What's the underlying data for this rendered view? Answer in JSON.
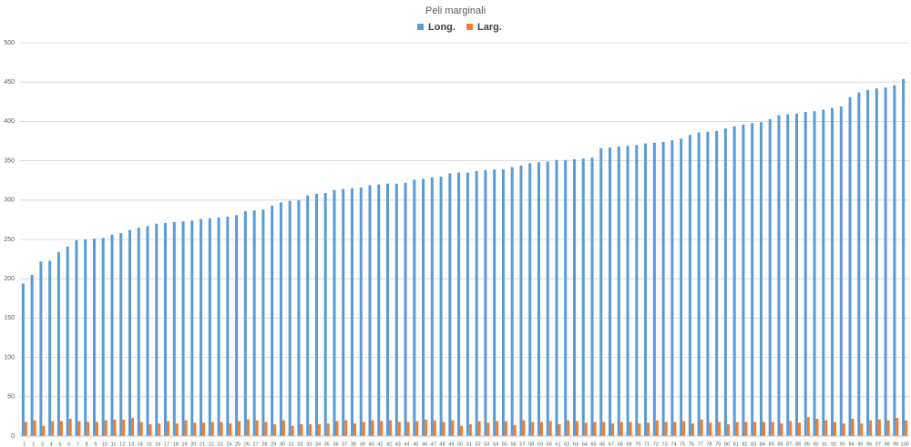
{
  "chart_data": {
    "type": "bar",
    "title": "Peli marginali",
    "categories": [
      "1",
      "2",
      "3",
      "4",
      "5",
      "6",
      "7",
      "8",
      "9",
      "10",
      "11",
      "12",
      "13",
      "14",
      "15",
      "16",
      "17",
      "18",
      "19",
      "20",
      "21",
      "22",
      "23",
      "24",
      "25",
      "26",
      "27",
      "28",
      "29",
      "30",
      "31",
      "32",
      "33",
      "34",
      "35",
      "36",
      "37",
      "38",
      "39",
      "40",
      "41",
      "42",
      "43",
      "44",
      "45",
      "46",
      "47",
      "48",
      "49",
      "50",
      "51",
      "52",
      "53",
      "54",
      "55",
      "56",
      "57",
      "58",
      "59",
      "60",
      "61",
      "62",
      "63",
      "64",
      "65",
      "66",
      "67",
      "68",
      "69",
      "70",
      "71",
      "72",
      "73",
      "74",
      "75",
      "76",
      "77",
      "78",
      "79",
      "80",
      "81",
      "82",
      "83",
      "84",
      "85",
      "86",
      "87",
      "88",
      "89",
      "90",
      "91",
      "92",
      "93",
      "94",
      "95",
      "96",
      "97",
      "98",
      "99",
      "100"
    ],
    "series": [
      {
        "name": "Long.",
        "color": "#5b9bd5",
        "values": [
          194,
          205,
          222,
          223,
          234,
          241,
          249,
          250,
          251,
          252,
          256,
          258,
          262,
          265,
          267,
          270,
          271,
          272,
          273,
          274,
          276,
          277,
          278,
          279,
          281,
          286,
          287,
          288,
          293,
          297,
          299,
          300,
          306,
          308,
          309,
          313,
          314,
          315,
          316,
          319,
          320,
          321,
          321,
          322,
          326,
          327,
          329,
          330,
          334,
          335,
          335,
          337,
          338,
          339,
          339,
          342,
          344,
          347,
          348,
          349,
          351,
          351,
          352,
          353,
          354,
          366,
          367,
          368,
          369,
          370,
          372,
          373,
          374,
          376,
          378,
          383,
          386,
          387,
          388,
          391,
          394,
          396,
          398,
          399,
          403,
          408,
          409,
          410,
          412,
          413,
          415,
          417,
          419,
          431,
          437,
          440,
          442,
          443,
          446,
          454
        ]
      },
      {
        "name": "Larg.",
        "color": "#ed7d31",
        "values": [
          18,
          20,
          13,
          19,
          19,
          22,
          19,
          18,
          18,
          20,
          21,
          21,
          23,
          18,
          15,
          16,
          19,
          16,
          20,
          17,
          17,
          18,
          18,
          16,
          19,
          21,
          20,
          18,
          15,
          20,
          13,
          15,
          15,
          15,
          16,
          19,
          20,
          16,
          18,
          20,
          19,
          20,
          18,
          18,
          19,
          21,
          20,
          18,
          20,
          13,
          15,
          19,
          17,
          19,
          19,
          14,
          20,
          18,
          18,
          19,
          15,
          20,
          19,
          17,
          18,
          18,
          16,
          18,
          18,
          16,
          17,
          20,
          18,
          18,
          19,
          16,
          21,
          17,
          18,
          15,
          18,
          18,
          18,
          18,
          18,
          16,
          19,
          17,
          24,
          22,
          20,
          18,
          16,
          22,
          16,
          20,
          21,
          20,
          23,
          20
        ]
      }
    ],
    "ylim": [
      0,
      500
    ],
    "yticks": [
      0,
      50,
      100,
      150,
      200,
      250,
      300,
      350,
      400,
      450,
      500
    ],
    "grid": true
  }
}
